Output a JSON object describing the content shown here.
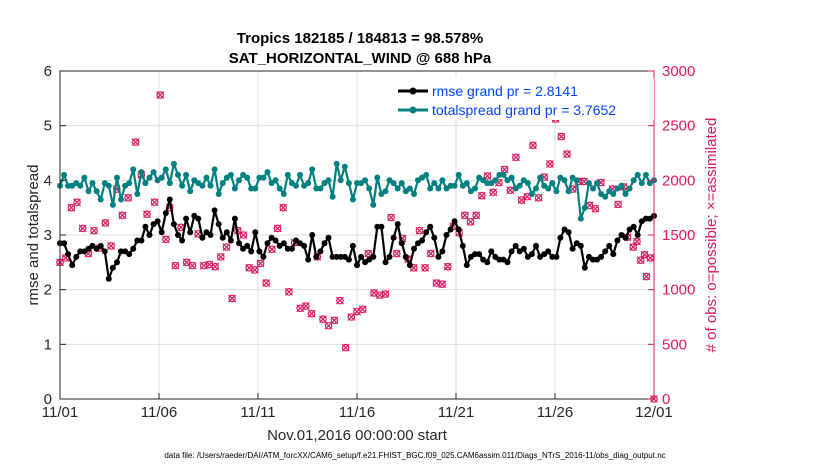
{
  "chart_data": {
    "type": "line",
    "title": "Tropics 182185 / 184813 = 98.578%",
    "subtitle": "SAT_HORIZONTAL_WIND @ 688 hPa",
    "xlabel": "Nov.01,2016 00:00:00 start",
    "ylabel": "rmse and totalspread",
    "ylabel_right": "# of obs: o=possible; ×=assimilated",
    "footer": "data file: /Users/raeder/DAI/ATM_forcXX/CAM6_setup/f.e21.FHIST_BGC.f09_025.CAM6assim.011/Diags_NTrS_2016-11/obs_diag_output.nc",
    "xlim": [
      0,
      30
    ],
    "ylim": [
      0,
      6
    ],
    "ylim_right": [
      0,
      3000
    ],
    "x_ticks": [
      0,
      5,
      10,
      15,
      20,
      25,
      30
    ],
    "x_tick_labels": [
      "11/01",
      "11/06",
      "11/11",
      "11/16",
      "11/21",
      "11/26",
      "12/01"
    ],
    "y_ticks": [
      0,
      1,
      2,
      3,
      4,
      5,
      6
    ],
    "y_tick_labels": [
      "0",
      "1",
      "2",
      "3",
      "4",
      "5",
      "6"
    ],
    "y_right_ticks": [
      0,
      500,
      1000,
      1500,
      2000,
      2500,
      3000
    ],
    "y_right_tick_labels": [
      "0",
      "500",
      "1000",
      "1500",
      "2000",
      "2500",
      "3000"
    ],
    "grid": true,
    "legend_position": "top-right",
    "colors": {
      "rmse": "#000000",
      "spread": "#008080",
      "obs": "#d81b60",
      "legend_text": "#0044ff"
    },
    "series": [
      {
        "name": "rmse grand pr = 2.8141",
        "color": "#000000",
        "values": [
          2.85,
          2.85,
          2.65,
          2.45,
          2.6,
          2.7,
          2.7,
          2.75,
          2.8,
          2.75,
          2.8,
          2.7,
          2.2,
          2.4,
          2.5,
          2.7,
          2.7,
          2.65,
          2.75,
          2.9,
          2.9,
          3.15,
          3.0,
          3.2,
          3.25,
          3.05,
          3.4,
          3.65,
          3.2,
          3.0,
          2.9,
          3.3,
          3.05,
          3.35,
          3.3,
          2.95,
          3.05,
          3.0,
          3.45,
          3.2,
          2.95,
          3.05,
          2.9,
          3.3,
          2.85,
          2.75,
          2.8,
          2.7,
          3.05,
          2.7,
          2.6,
          2.85,
          2.95,
          2.9,
          2.8,
          2.85,
          2.75,
          2.75,
          2.9,
          2.85,
          2.8,
          2.55,
          3.0,
          2.6,
          2.7,
          2.85,
          2.95,
          2.6,
          2.6,
          2.6,
          2.6,
          2.55,
          2.8,
          2.45,
          2.6,
          2.5,
          2.55,
          2.6,
          3.15,
          3.15,
          2.5,
          2.6,
          2.95,
          3.2,
          2.85,
          2.6,
          2.45,
          2.75,
          2.85,
          2.9,
          3.05,
          3.15,
          2.95,
          2.6,
          2.7,
          3.0,
          3.1,
          3.25,
          3.1,
          2.8,
          2.45,
          2.6,
          2.65,
          2.65,
          2.55,
          2.5,
          2.7,
          2.6,
          2.55,
          2.55,
          2.5,
          2.7,
          2.8,
          2.7,
          2.75,
          2.6,
          2.65,
          2.8,
          2.6,
          2.65,
          2.7,
          2.6,
          2.6,
          2.95,
          3.1,
          3.05,
          2.75,
          2.85,
          2.8,
          2.4,
          2.6,
          2.55,
          2.55,
          2.6,
          2.7,
          2.8,
          2.65,
          2.9,
          3.0,
          2.95,
          3.1,
          3.15,
          3.0,
          3.25,
          3.3,
          3.3,
          3.35
        ]
      },
      {
        "name": "totalspread grand pr = 3.7652",
        "color": "#008080",
        "values": [
          3.9,
          4.1,
          3.9,
          3.9,
          3.95,
          3.9,
          4.05,
          3.8,
          3.95,
          3.8,
          3.65,
          3.95,
          3.9,
          3.55,
          4.05,
          3.65,
          3.9,
          3.95,
          4.2,
          3.75,
          4.15,
          3.95,
          4.05,
          4.15,
          4.0,
          4.05,
          4.2,
          3.95,
          4.3,
          4.1,
          3.9,
          4.1,
          3.8,
          4.0,
          3.95,
          3.9,
          4.05,
          3.9,
          4.2,
          3.75,
          3.95,
          4.05,
          4.1,
          3.85,
          4.0,
          4.1,
          4.05,
          3.85,
          3.85,
          4.05,
          4.05,
          4.15,
          3.95,
          4.0,
          3.85,
          3.75,
          4.1,
          3.95,
          3.9,
          4.1,
          3.9,
          3.95,
          4.2,
          3.85,
          3.85,
          3.95,
          4.0,
          3.7,
          4.3,
          4.0,
          4.25,
          3.95,
          3.65,
          3.95,
          3.95,
          4.0,
          3.85,
          3.55,
          4.05,
          3.75,
          3.8,
          4.0,
          3.95,
          3.85,
          3.95,
          3.8,
          3.85,
          3.75,
          4.0,
          4.05,
          4.1,
          3.85,
          3.95,
          3.85,
          4.0,
          3.85,
          3.9,
          3.9,
          4.1,
          3.9,
          3.95,
          3.8,
          3.85,
          4.05,
          4.0,
          3.95,
          3.95,
          4.0,
          4.1,
          4.1,
          4.0,
          4.05,
          3.85,
          3.9,
          4.0,
          3.95,
          3.75,
          3.85,
          4.05,
          3.9,
          3.85,
          3.95,
          3.8,
          4.05,
          4.0,
          3.8,
          4.05,
          4.0,
          3.3,
          3.5,
          3.95,
          3.85,
          3.95,
          3.75,
          3.7,
          3.8,
          3.75,
          3.85,
          3.9,
          3.75,
          3.85,
          4.0,
          4.1,
          3.95,
          4.1,
          3.95,
          4.0
        ]
      }
    ],
    "obs_possible": [
      [
        0,
        1250
      ],
      [
        0.3,
        1290
      ],
      [
        0.6,
        1750
      ],
      [
        0.9,
        1800
      ],
      [
        1.2,
        1560
      ],
      [
        1.5,
        1330
      ],
      [
        1.8,
        1540
      ],
      [
        2.1,
        1380
      ],
      [
        2.4,
        1610
      ],
      [
        2.7,
        1400
      ],
      [
        3.0,
        1920
      ],
      [
        3.3,
        1680
      ],
      [
        3.6,
        1840
      ],
      [
        4.0,
        2350
      ],
      [
        4.3,
        2050
      ],
      [
        4.6,
        1690
      ],
      [
        5.0,
        1800
      ],
      [
        5.3,
        2780
      ],
      [
        5.6,
        1460
      ],
      [
        5.8,
        1750
      ],
      [
        6.1,
        1220
      ],
      [
        6.4,
        1570
      ],
      [
        6.7,
        1250
      ],
      [
        7.0,
        1220
      ],
      [
        7.3,
        1510
      ],
      [
        7.6,
        1220
      ],
      [
        7.9,
        1230
      ],
      [
        8.2,
        1210
      ],
      [
        8.5,
        1300
      ],
      [
        8.8,
        1390
      ],
      [
        9.1,
        920
      ],
      [
        9.4,
        1540
      ],
      [
        9.7,
        1500
      ],
      [
        10.0,
        1200
      ],
      [
        10.3,
        1180
      ],
      [
        10.6,
        1240
      ],
      [
        10.9,
        1060
      ],
      [
        11.2,
        1370
      ],
      [
        11.5,
        1560
      ],
      [
        11.8,
        1750
      ],
      [
        12.1,
        980
      ],
      [
        12.4,
        1430
      ],
      [
        12.7,
        830
      ],
      [
        13.0,
        850
      ],
      [
        13.3,
        780
      ],
      [
        13.6,
        1300
      ],
      [
        13.9,
        730
      ],
      [
        14.2,
        670
      ],
      [
        14.5,
        720
      ],
      [
        14.8,
        900
      ],
      [
        15.1,
        470
      ],
      [
        15.4,
        750
      ],
      [
        15.7,
        800
      ],
      [
        16.0,
        820
      ],
      [
        16.3,
        1330
      ],
      [
        16.6,
        970
      ],
      [
        16.9,
        950
      ],
      [
        17.2,
        960
      ],
      [
        17.5,
        1660
      ],
      [
        17.8,
        1330
      ],
      [
        18.1,
        1470
      ],
      [
        18.4,
        1280
      ],
      [
        18.7,
        1200
      ],
      [
        19.0,
        1540
      ],
      [
        19.3,
        1200
      ],
      [
        19.6,
        1330
      ],
      [
        19.9,
        1060
      ],
      [
        20.2,
        1050
      ],
      [
        20.5,
        1210
      ],
      [
        20.8,
        1580
      ],
      [
        21.1,
        1520
      ],
      [
        21.4,
        1680
      ],
      [
        21.7,
        1620
      ],
      [
        22.0,
        1680
      ],
      [
        22.3,
        1860
      ],
      [
        22.6,
        2040
      ],
      [
        22.9,
        1890
      ],
      [
        23.2,
        1980
      ],
      [
        23.5,
        2100
      ],
      [
        23.8,
        1910
      ],
      [
        24.1,
        2210
      ],
      [
        24.4,
        1820
      ],
      [
        24.7,
        1850
      ],
      [
        25.0,
        2320
      ],
      [
        25.3,
        1840
      ],
      [
        25.6,
        2030
      ],
      [
        25.9,
        2150
      ],
      [
        26.2,
        2560
      ],
      [
        26.5,
        2400
      ],
      [
        26.8,
        2240
      ],
      [
        27.1,
        1920
      ],
      [
        27.4,
        1990
      ],
      [
        27.7,
        1990
      ],
      [
        28.0,
        1770
      ],
      [
        28.3,
        1740
      ],
      [
        28.6,
        1980
      ],
      [
        28.9,
        2800
      ],
      [
        29.2,
        1920
      ],
      [
        29.5,
        1780
      ],
      [
        29.8,
        1940
      ],
      [
        30.0,
        1480
      ],
      [
        30.3,
        1390
      ],
      [
        30.5,
        1440
      ],
      [
        30.7,
        1270
      ],
      [
        30.9,
        1320
      ],
      [
        31.0,
        1120
      ],
      [
        31.2,
        1290
      ],
      [
        31.4,
        0
      ]
    ]
  },
  "legend": {
    "rmse_label": "rmse grand pr = 2.8141",
    "spread_label": "totalspread grand pr = 3.7652"
  }
}
